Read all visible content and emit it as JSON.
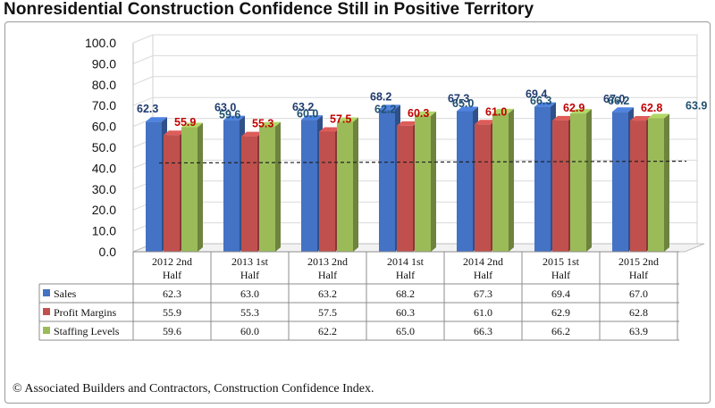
{
  "title": "Nonresidential Construction Confidence Still in Positive Territory",
  "source": "© Associated Builders and Contractors, Construction Confidence Index.",
  "chart_data": {
    "type": "bar",
    "categories": [
      [
        "2012 2nd",
        "Half"
      ],
      [
        "2013 1st",
        "Half"
      ],
      [
        "2013 2nd",
        "Half"
      ],
      [
        "2014 1st",
        "Half"
      ],
      [
        "2014 2nd",
        "Half"
      ],
      [
        "2015 1st",
        "Half"
      ],
      [
        "2015 2nd",
        "Half"
      ]
    ],
    "series": [
      {
        "name": "Sales",
        "values": [
          62.3,
          63.0,
          63.2,
          68.2,
          67.3,
          69.4,
          67.0
        ],
        "color": "#4472c4",
        "label_color": "#1f3a6e"
      },
      {
        "name": "Profit Margins",
        "values": [
          55.9,
          55.3,
          57.5,
          60.3,
          61.0,
          62.9,
          62.8
        ],
        "color": "#c0504d",
        "label_color": "#c00000"
      },
      {
        "name": "Staffing Levels",
        "values": [
          59.6,
          60.0,
          62.2,
          65.0,
          66.3,
          66.2,
          63.9
        ],
        "color": "#9bbb59",
        "label_color": "#1f4f6e"
      }
    ],
    "ylim": [
      0,
      100
    ],
    "yticks": [
      "0.0",
      "10.0",
      "20.0",
      "30.0",
      "40.0",
      "50.0",
      "60.0",
      "70.0",
      "80.0",
      "90.0",
      "100.0"
    ],
    "reference_line": 42.5,
    "data_table": true
  }
}
